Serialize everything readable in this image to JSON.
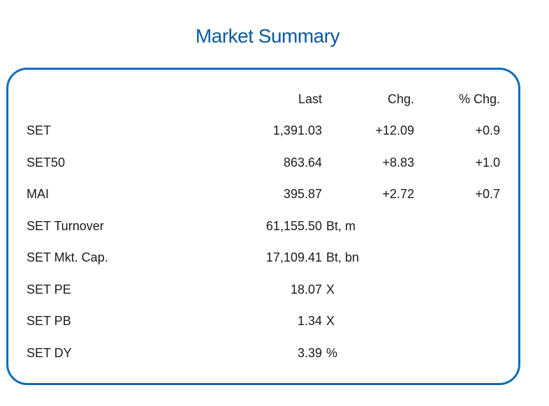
{
  "title": "Market Summary",
  "columns": {
    "last": "Last",
    "chg": "Chg.",
    "pct_chg": "% Chg."
  },
  "indices": [
    {
      "name": "SET",
      "last": "1,391.03",
      "chg": "+12.09",
      "pct_chg": "+0.9"
    },
    {
      "name": "SET50",
      "last": "863.64",
      "chg": "+8.83",
      "pct_chg": "+1.0"
    },
    {
      "name": "MAI",
      "last": "395.87",
      "chg": "+2.72",
      "pct_chg": "+0.7"
    }
  ],
  "stats": [
    {
      "name": "SET  Turnover",
      "value": "61,155.50",
      "unit": "Bt,  m"
    },
    {
      "name": "SET  Mkt.  Cap.",
      "value": "17,109.41",
      "unit": "Bt,  bn"
    },
    {
      "name": "SET  PE",
      "value": "18.07",
      "unit": "X"
    },
    {
      "name": "SET  PB",
      "value": "1.34",
      "unit": "X"
    },
    {
      "name": "SET  DY",
      "value": "3.39",
      "unit": "%"
    }
  ]
}
